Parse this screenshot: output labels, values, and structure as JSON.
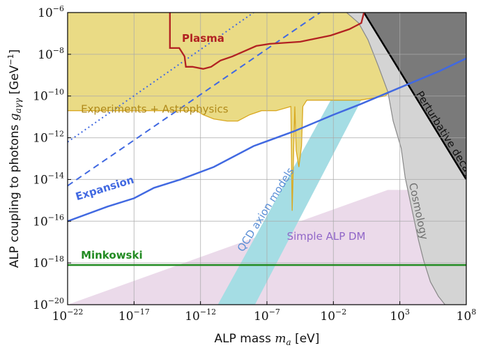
{
  "chart_data": {
    "type": "line",
    "title": "",
    "xlabel": "ALP mass m_a [eV]",
    "xlabel_text": "ALP mass ",
    "xlabel_sym": "m",
    "xlabel_sub": "a",
    "xlabel_unit": " [eV]",
    "ylabel_text": "ALP coupling to photons ",
    "ylabel_sym": "g",
    "ylabel_sub": "aγγ",
    "ylabel_unit_open": " [GeV",
    "ylabel_unit_exp": "−1",
    "ylabel_unit_close": "]",
    "x_scale": "log10",
    "y_scale": "log10",
    "xlim_log10": [
      -22,
      8
    ],
    "ylim_log10": [
      -20,
      -6
    ],
    "x_ticks": [
      {
        "base": "10",
        "exp": "−22",
        "value": -22
      },
      {
        "base": "10",
        "exp": "−17",
        "value": -17
      },
      {
        "base": "10",
        "exp": "−12",
        "value": -12
      },
      {
        "base": "10",
        "exp": "−7",
        "value": -7
      },
      {
        "base": "10",
        "exp": "−2",
        "value": -2
      },
      {
        "base": "10",
        "exp": "3",
        "value": 3
      },
      {
        "base": "10",
        "exp": "8",
        "value": 8
      }
    ],
    "y_ticks": [
      {
        "base": "10",
        "exp": "−20",
        "value": -20
      },
      {
        "base": "10",
        "exp": "−18",
        "value": -18
      },
      {
        "base": "10",
        "exp": "−16",
        "value": -16
      },
      {
        "base": "10",
        "exp": "−14",
        "value": -14
      },
      {
        "base": "10",
        "exp": "−12",
        "value": -12
      },
      {
        "base": "10",
        "exp": "−10",
        "value": -10
      },
      {
        "base": "10",
        "exp": "−8",
        "value": -8
      },
      {
        "base": "10",
        "exp": "−6",
        "value": -6
      }
    ],
    "grid": true,
    "regions": [
      {
        "name": "Experiments + Astrophysics",
        "color": "#e5d36a",
        "edge_color": "#d9a820",
        "upper_boundary": [
          [
            -22,
            -6
          ],
          [
            8,
            -6
          ]
        ],
        "boundary": [
          [
            -22,
            -10.7
          ],
          [
            -12.3,
            -10.7
          ],
          [
            -11.8,
            -10.9
          ],
          [
            -11,
            -11.1
          ],
          [
            -10,
            -11.2
          ],
          [
            -9.2,
            -11.2
          ],
          [
            -8.3,
            -10.9
          ],
          [
            -7.4,
            -10.7
          ],
          [
            -6.3,
            -10.7
          ],
          [
            -5.2,
            -10.5
          ],
          [
            -5.1,
            -15.5
          ],
          [
            -4.9,
            -10.5
          ],
          [
            -4.8,
            -12.6
          ],
          [
            -4.6,
            -13.4
          ],
          [
            -4.4,
            -12.4
          ],
          [
            -4.3,
            -10.5
          ],
          [
            -4,
            -10.2
          ],
          [
            -2.6,
            -10.2
          ],
          [
            0,
            -10.2
          ],
          [
            1.9,
            -10.0
          ],
          [
            2.4,
            -9.7
          ],
          [
            3,
            -9.4
          ]
        ]
      },
      {
        "name": "Perturbative decay",
        "color": "#7a7a7a",
        "boundary": [
          [
            0.3,
            -6
          ],
          [
            8,
            -14.0
          ]
        ]
      },
      {
        "name": "Cosmology",
        "color": "#d4d4d4",
        "edge_color": "#888888",
        "left_boundary": [
          [
            -1,
            -6
          ],
          [
            -0.1,
            -6.5
          ],
          [
            0.6,
            -7.3
          ],
          [
            1.4,
            -8.6
          ],
          [
            2.1,
            -9.8
          ],
          [
            2.5,
            -11.2
          ],
          [
            3.1,
            -12.5
          ],
          [
            3.4,
            -13.9
          ],
          [
            3.9,
            -15.4
          ],
          [
            4.4,
            -16.9
          ],
          [
            4.8,
            -17.9
          ],
          [
            5.3,
            -18.9
          ],
          [
            5.9,
            -19.6
          ],
          [
            6.4,
            -20
          ]
        ]
      },
      {
        "name": "QCD axion models",
        "color": "#a5dde4",
        "band": [
          [
            -10.7,
            -20
          ],
          [
            -7.9,
            -20
          ],
          [
            0.1,
            -10.2
          ],
          [
            -2.2,
            -10.2
          ]
        ]
      },
      {
        "name": "Simple ALP DM",
        "color": "#e7d3e6",
        "band": [
          [
            -22,
            -20
          ],
          [
            2.1,
            -14.5
          ],
          [
            8,
            -14.5
          ],
          [
            8,
            -20
          ]
        ]
      }
    ],
    "series": [
      {
        "name": "Plasma",
        "color": "#b22222",
        "points": [
          [
            -14.3,
            -6
          ],
          [
            -14.3,
            -7.7
          ],
          [
            -13.6,
            -7.7
          ],
          [
            -13.2,
            -8.1
          ],
          [
            -13.1,
            -8.6
          ],
          [
            -12.6,
            -8.6
          ],
          [
            -11.8,
            -8.7
          ],
          [
            -11.2,
            -8.6
          ],
          [
            -10.5,
            -8.3
          ],
          [
            -9.6,
            -8.1
          ],
          [
            -7.8,
            -7.6
          ],
          [
            -6.8,
            -7.5
          ],
          [
            -4.5,
            -7.4
          ],
          [
            -2.2,
            -7.1
          ],
          [
            -0.8,
            -6.8
          ],
          [
            0.1,
            -6.5
          ],
          [
            0.3,
            -6
          ]
        ]
      },
      {
        "name": "Expansion",
        "color": "#4169e1",
        "points": [
          [
            -22,
            -16.0
          ],
          [
            -19,
            -15.3
          ],
          [
            -17,
            -14.9
          ],
          [
            -15.5,
            -14.4
          ],
          [
            -13.5,
            -14.0
          ],
          [
            -11,
            -13.4
          ],
          [
            -8,
            -12.4
          ],
          [
            -5,
            -11.7
          ],
          [
            -2,
            -10.9
          ],
          [
            0,
            -10.4
          ],
          [
            3,
            -9.6
          ],
          [
            6,
            -8.8
          ],
          [
            8,
            -8.2
          ]
        ]
      },
      {
        "name": "dashed",
        "color": "#4169e1",
        "style": "dashed",
        "points": [
          [
            -22,
            -14.3
          ],
          [
            -3,
            -6
          ]
        ]
      },
      {
        "name": "dotted",
        "color": "#4169e1",
        "style": "dotted",
        "points": [
          [
            -22,
            -12.2
          ],
          [
            -8,
            -6
          ]
        ]
      },
      {
        "name": "Minkowski",
        "color": "#228b22",
        "points": [
          [
            -22,
            -18.1
          ],
          [
            8,
            -18.1
          ]
        ]
      }
    ],
    "annotations": [
      {
        "text": "Plasma",
        "color": "#b22222",
        "bold": true,
        "at": [
          -13.4,
          -7.4
        ]
      },
      {
        "text": "Experiments + Astrophysics",
        "color": "#b08a1a",
        "bold": false,
        "at": [
          -21,
          -10.8
        ]
      },
      {
        "text": "Expansion",
        "color": "#4169e1",
        "bold": true,
        "at": [
          -21.3,
          -15.0
        ],
        "rotate": -17
      },
      {
        "text": "QCD axion models",
        "color": "#5b8fd6",
        "bold": false,
        "at": [
          -8.8,
          -17.5
        ],
        "rotate": -58
      },
      {
        "text": "Simple ALP DM",
        "color": "#9066c8",
        "bold": false,
        "at": [
          -5.5,
          -16.9
        ]
      },
      {
        "text": "Cosmology",
        "color": "#707070",
        "bold": false,
        "at": [
          3.7,
          -14.2
        ],
        "rotate": 78
      },
      {
        "text": "Perturbative decay",
        "color": "#111111",
        "bold": false,
        "at": [
          4.2,
          -9.9
        ],
        "rotate": 58
      },
      {
        "text": "Minkowski",
        "color": "#228b22",
        "bold": true,
        "at": [
          -21,
          -17.8
        ]
      }
    ]
  }
}
